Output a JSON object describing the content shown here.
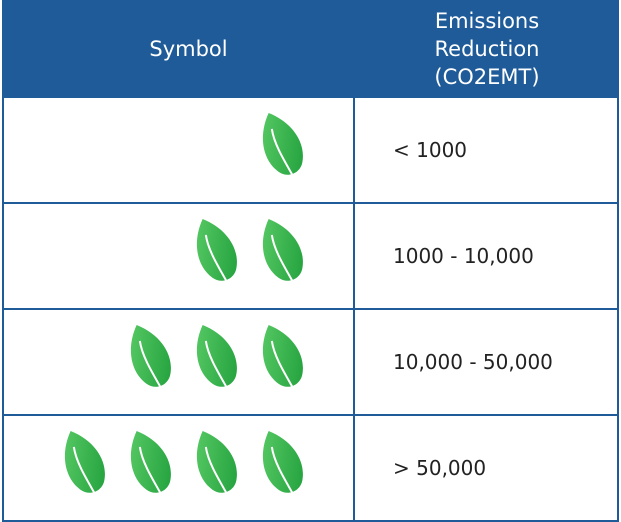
{
  "header": {
    "columns": [
      "Symbol",
      "Emissions Reduction (CO2EMT)"
    ]
  },
  "table": {
    "rows": [
      "< 1000",
      "1000 - 10,000",
      "10,000 - 50,000",
      "> 50,000"
    ]
  }
}
